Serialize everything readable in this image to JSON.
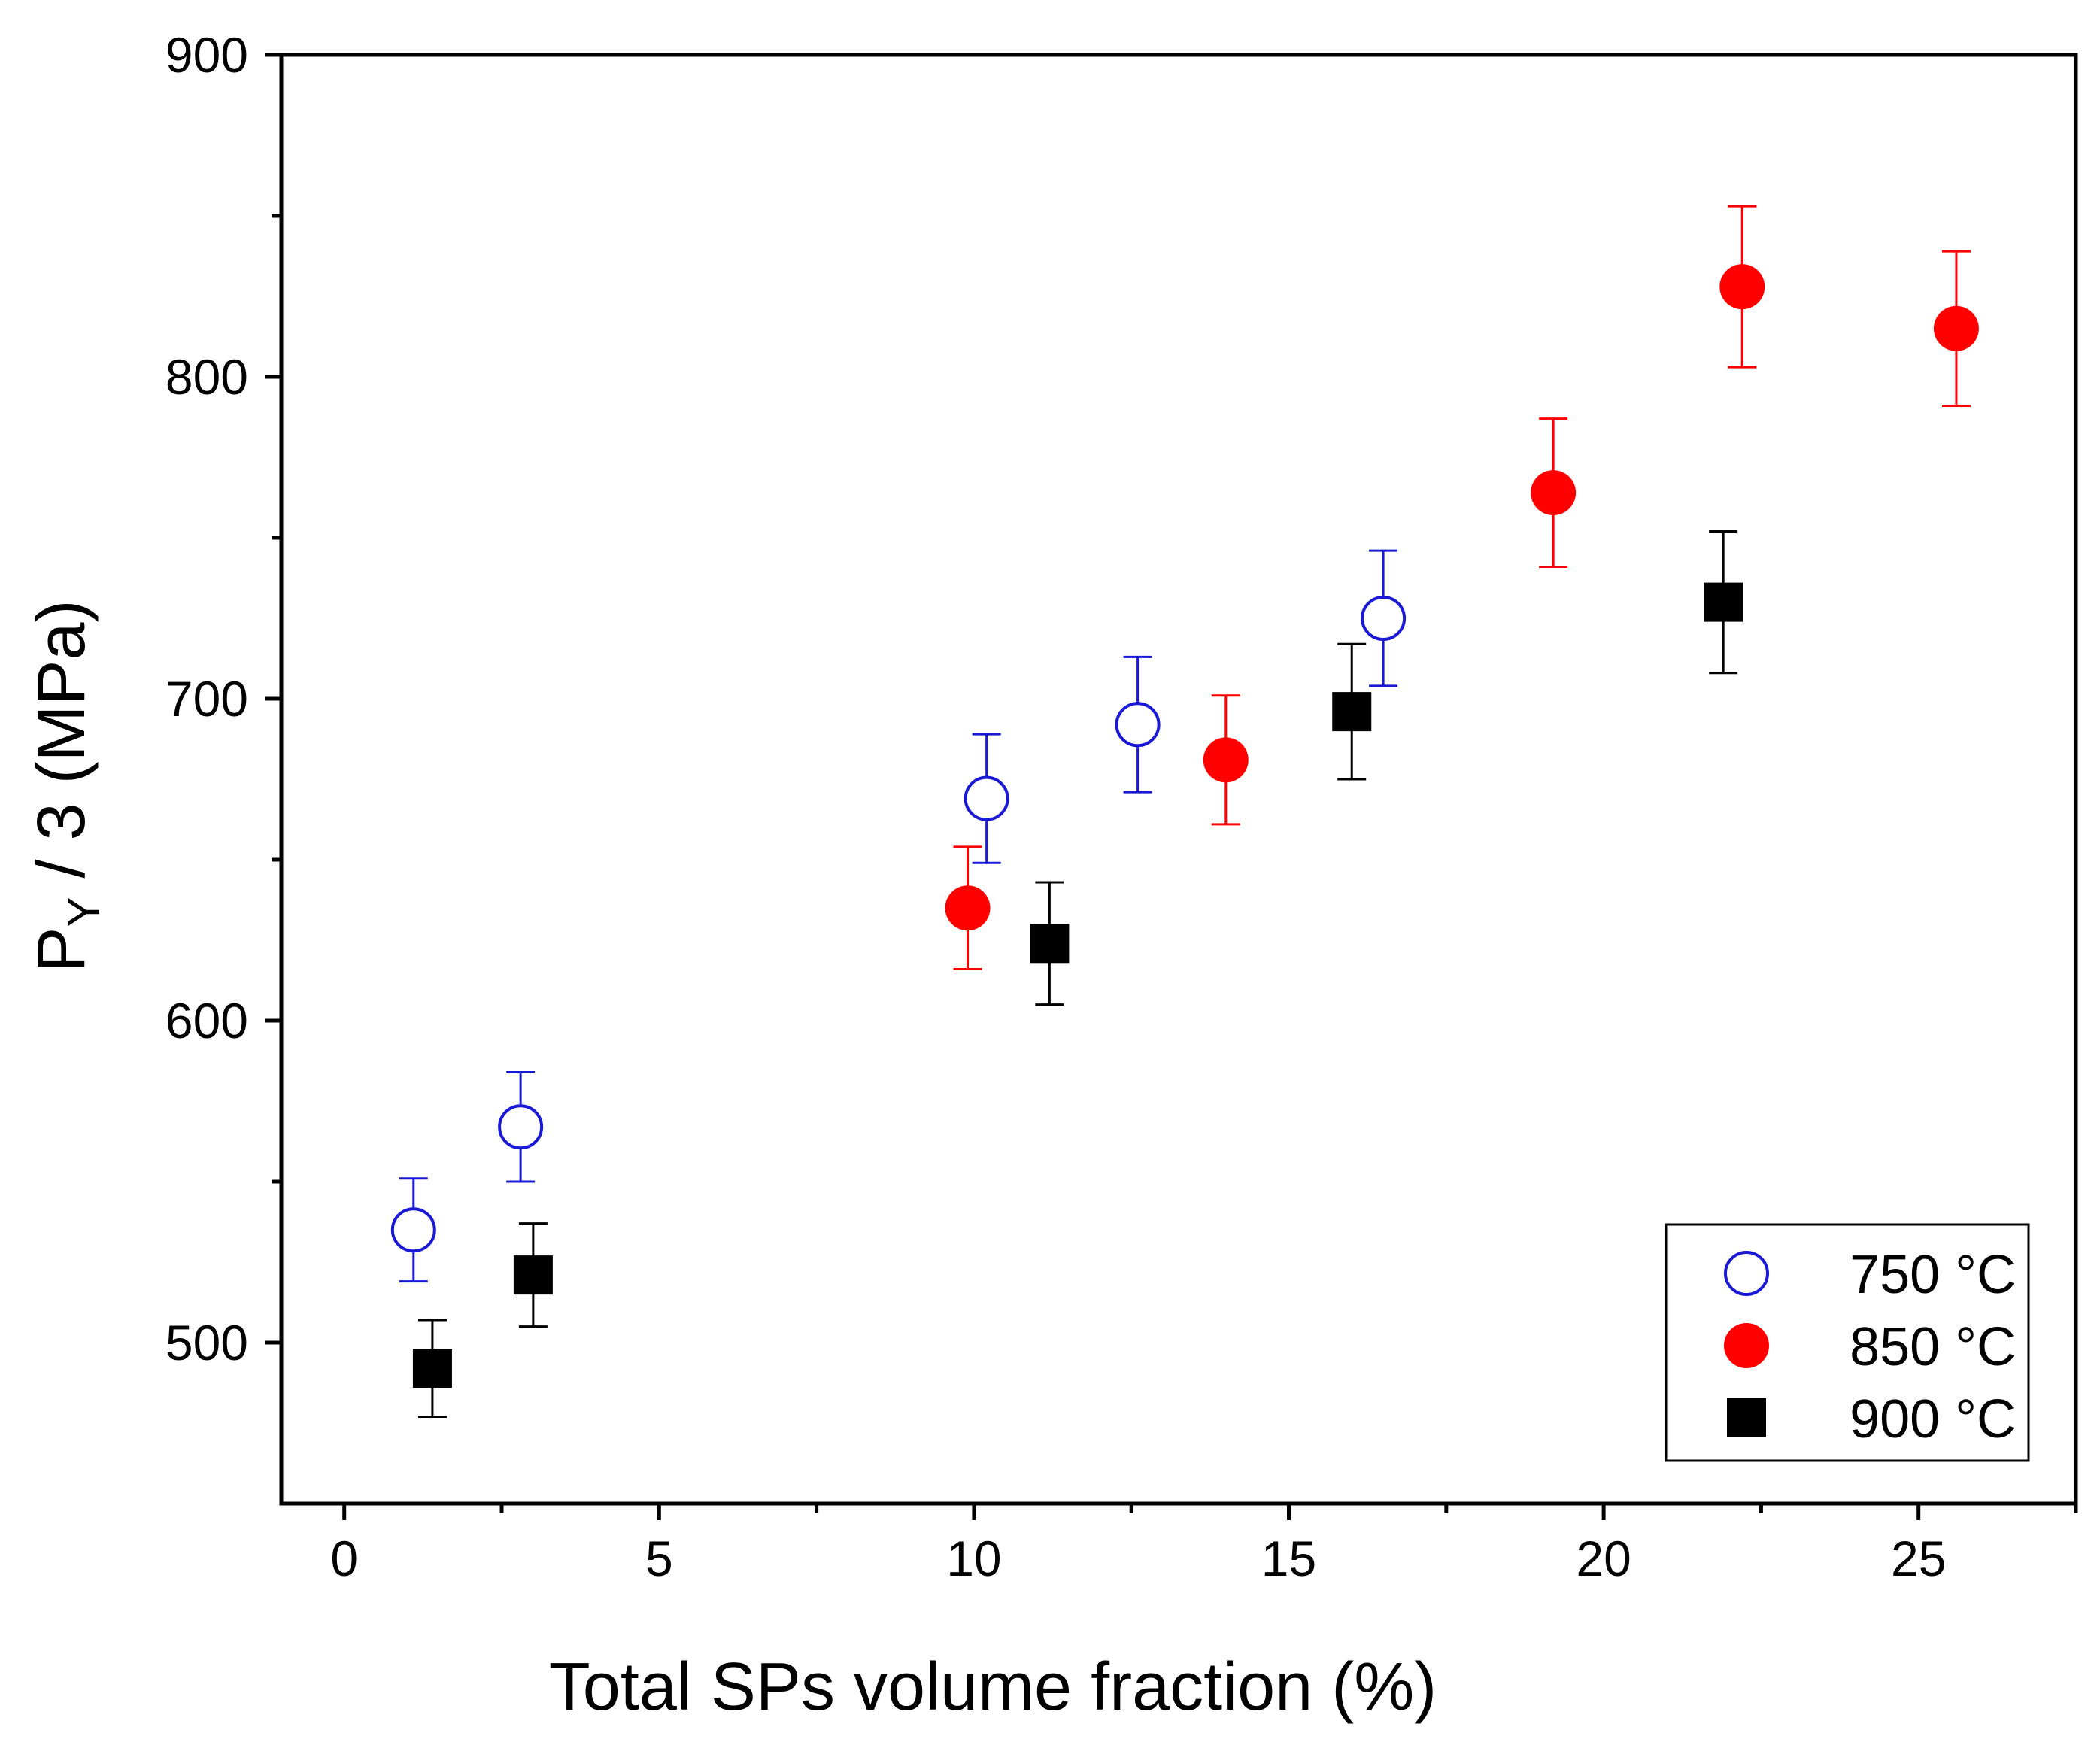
{
  "chart_data": {
    "type": "scatter",
    "title": "",
    "xlabel": "Total SPs volume fraction (%)",
    "ylabel_main": "P",
    "ylabel_subscript": "Y",
    "ylabel_rest": " / 3 (MPa)",
    "xlim": [
      -1,
      27.5
    ],
    "ylim": [
      450,
      900
    ],
    "x_major_ticks": [
      0,
      5,
      10,
      15,
      20,
      25
    ],
    "x_minor_ticks": [
      2.5,
      7.5,
      12.5,
      17.5,
      22.5,
      27.5
    ],
    "y_major_ticks": [
      500,
      600,
      700,
      800,
      900
    ],
    "y_minor_ticks": [
      550,
      650,
      750,
      850
    ],
    "x_tick_labels": [
      "0",
      "5",
      "10",
      "15",
      "20",
      "25"
    ],
    "y_tick_labels": [
      "500",
      "600",
      "700",
      "800",
      "900"
    ],
    "grid": false,
    "legend_position": "bottom-right",
    "series": [
      {
        "name": "750 °C",
        "marker": "open-circle",
        "color": "#1a1ad6",
        "points": [
          {
            "x": 1.1,
            "y": 535,
            "err": 16
          },
          {
            "x": 2.8,
            "y": 567,
            "err": 17
          },
          {
            "x": 10.2,
            "y": 669,
            "err": 20
          },
          {
            "x": 12.6,
            "y": 692,
            "err": 21
          },
          {
            "x": 16.5,
            "y": 725,
            "err": 21
          }
        ]
      },
      {
        "name": "850 °C",
        "marker": "filled-circle",
        "color": "#ff0000",
        "points": [
          {
            "x": 9.9,
            "y": 635,
            "err": 19
          },
          {
            "x": 14.0,
            "y": 681,
            "err": 20
          },
          {
            "x": 19.2,
            "y": 764,
            "err": 23
          },
          {
            "x": 22.2,
            "y": 828,
            "err": 25
          },
          {
            "x": 25.6,
            "y": 815,
            "err": 24
          }
        ]
      },
      {
        "name": "900 °C",
        "marker": "filled-square",
        "color": "#000000",
        "points": [
          {
            "x": 1.4,
            "y": 492,
            "err": 15
          },
          {
            "x": 3.0,
            "y": 521,
            "err": 16
          },
          {
            "x": 11.2,
            "y": 624,
            "err": 19
          },
          {
            "x": 16.0,
            "y": 696,
            "err": 21
          },
          {
            "x": 21.9,
            "y": 730,
            "err": 22
          }
        ]
      }
    ]
  }
}
